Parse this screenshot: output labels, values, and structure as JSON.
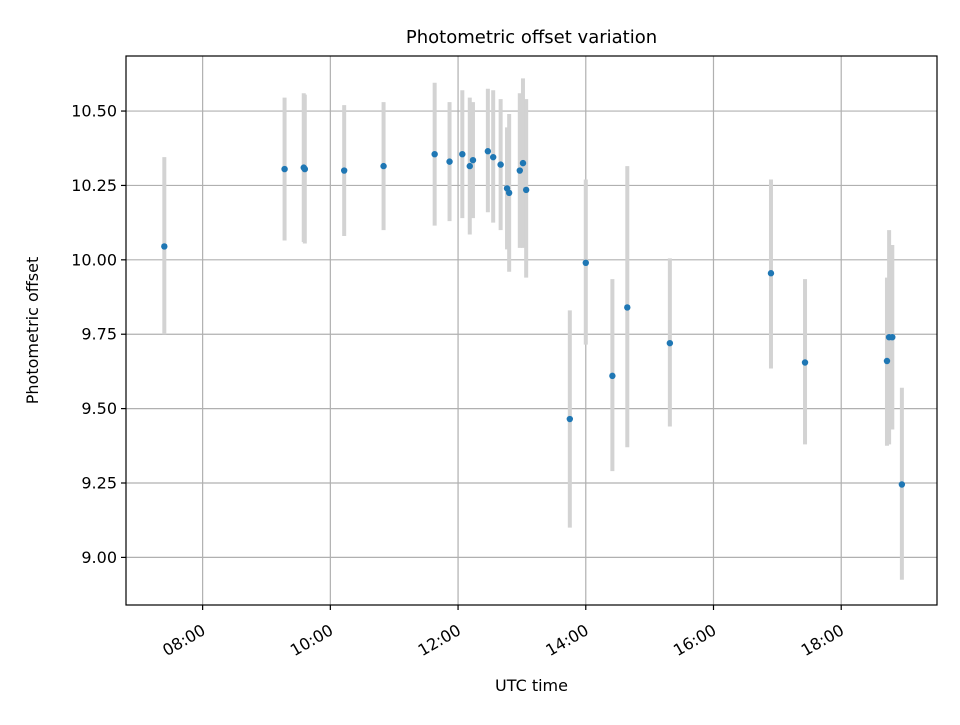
{
  "chart_data": {
    "type": "scatter",
    "title": "Photometric offset variation",
    "xlabel": "UTC time",
    "ylabel": "Photometric offset",
    "x_unit": "hours (UTC)",
    "xlim": [
      "06:48",
      "19:30"
    ],
    "ylim": [
      8.84,
      10.685
    ],
    "x_ticks": [
      "08:00",
      "10:00",
      "12:00",
      "14:00",
      "16:00",
      "18:00"
    ],
    "y_ticks": [
      "9.00",
      "9.25",
      "9.50",
      "9.75",
      "10.00",
      "10.25",
      "10.50"
    ],
    "grid": true,
    "legend": "none",
    "colors": {
      "points": "#1f77b4",
      "errorbars": "#d3d3d3",
      "grid": "#b0b0b0"
    },
    "points": [
      {
        "t": "07:24",
        "y": 10.045,
        "ylo": 9.75,
        "yhi": 10.345
      },
      {
        "t": "09:17",
        "y": 10.305,
        "ylo": 10.065,
        "yhi": 10.545
      },
      {
        "t": "09:35",
        "y": 10.31,
        "ylo": 10.06,
        "yhi": 10.56
      },
      {
        "t": "09:36",
        "y": 10.305,
        "ylo": 10.055,
        "yhi": 10.555
      },
      {
        "t": "10:13",
        "y": 10.3,
        "ylo": 10.08,
        "yhi": 10.52
      },
      {
        "t": "10:50",
        "y": 10.315,
        "ylo": 10.1,
        "yhi": 10.53
      },
      {
        "t": "11:38",
        "y": 10.355,
        "ylo": 10.115,
        "yhi": 10.595
      },
      {
        "t": "11:52",
        "y": 10.33,
        "ylo": 10.13,
        "yhi": 10.53
      },
      {
        "t": "12:04",
        "y": 10.355,
        "ylo": 10.14,
        "yhi": 10.57
      },
      {
        "t": "12:11",
        "y": 10.315,
        "ylo": 10.085,
        "yhi": 10.545
      },
      {
        "t": "12:14",
        "y": 10.335,
        "ylo": 10.14,
        "yhi": 10.53
      },
      {
        "t": "12:28",
        "y": 10.365,
        "ylo": 10.16,
        "yhi": 10.575
      },
      {
        "t": "12:33",
        "y": 10.345,
        "ylo": 10.125,
        "yhi": 10.57
      },
      {
        "t": "12:40",
        "y": 10.32,
        "ylo": 10.1,
        "yhi": 10.54
      },
      {
        "t": "12:46",
        "y": 10.24,
        "ylo": 10.035,
        "yhi": 10.445
      },
      {
        "t": "12:48",
        "y": 10.225,
        "ylo": 9.96,
        "yhi": 10.49
      },
      {
        "t": "12:58",
        "y": 10.3,
        "ylo": 10.04,
        "yhi": 10.56
      },
      {
        "t": "13:01",
        "y": 10.325,
        "ylo": 10.04,
        "yhi": 10.61
      },
      {
        "t": "13:04",
        "y": 10.235,
        "ylo": 9.94,
        "yhi": 10.54
      },
      {
        "t": "13:45",
        "y": 9.465,
        "ylo": 9.1,
        "yhi": 9.83
      },
      {
        "t": "14:00",
        "y": 9.99,
        "ylo": 9.715,
        "yhi": 10.27
      },
      {
        "t": "14:25",
        "y": 9.61,
        "ylo": 9.29,
        "yhi": 9.935
      },
      {
        "t": "14:39",
        "y": 9.84,
        "ylo": 9.37,
        "yhi": 10.315
      },
      {
        "t": "15:19",
        "y": 9.72,
        "ylo": 9.44,
        "yhi": 10.005
      },
      {
        "t": "16:54",
        "y": 9.955,
        "ylo": 9.635,
        "yhi": 10.27
      },
      {
        "t": "17:26",
        "y": 9.655,
        "ylo": 9.38,
        "yhi": 9.935
      },
      {
        "t": "18:43",
        "y": 9.66,
        "ylo": 9.375,
        "yhi": 9.94
      },
      {
        "t": "18:45",
        "y": 9.74,
        "ylo": 9.38,
        "yhi": 10.1
      },
      {
        "t": "18:48",
        "y": 9.74,
        "ylo": 9.43,
        "yhi": 10.05
      },
      {
        "t": "18:57",
        "y": 9.245,
        "ylo": 8.925,
        "yhi": 9.57
      }
    ]
  }
}
